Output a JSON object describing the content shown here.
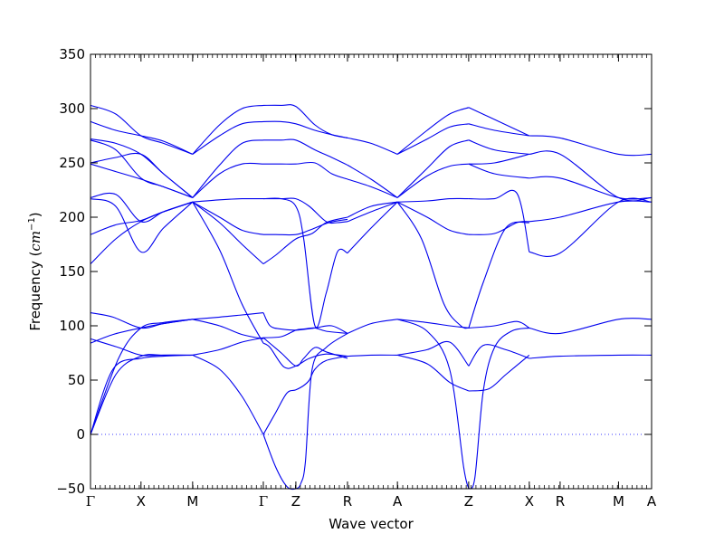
{
  "chart_data": {
    "type": "line",
    "title": "",
    "xlabel": "Wave vector",
    "ylabel": "Frequency (cm⁻¹)",
    "ylabel_text": "Frequency (",
    "ylabel_unit": "cm",
    "ylabel_exp": "−1",
    "ylabel_close": ")",
    "ylim": [
      -50,
      350
    ],
    "yticks": [
      -50,
      0,
      50,
      100,
      150,
      200,
      250,
      300,
      350
    ],
    "ytick_labels": [
      "−50",
      "0",
      "50",
      "100",
      "150",
      "200",
      "250",
      "300",
      "350"
    ],
    "xlim": [
      0,
      1
    ],
    "xticks": [
      {
        "label": "Γ",
        "pos": 0.0
      },
      {
        "label": "X",
        "pos": 0.09
      },
      {
        "label": "M",
        "pos": 0.182
      },
      {
        "label": "Γ",
        "pos": 0.308
      },
      {
        "label": "Z",
        "pos": 0.366
      },
      {
        "label": "R",
        "pos": 0.458
      },
      {
        "label": "A",
        "pos": 0.547
      },
      {
        "label": "Z",
        "pos": 0.674
      },
      {
        "label": "X",
        "pos": 0.782
      },
      {
        "label": "R",
        "pos": 0.837
      },
      {
        "label": "M",
        "pos": 0.941
      },
      {
        "label": "A",
        "pos": 1.0
      }
    ],
    "zero_line": {
      "y": 0,
      "style": "dotted",
      "color": "#3a3aff"
    },
    "grid": false,
    "line_color": "#0000ee",
    "series": [
      {
        "x": [
          0.0,
          0.04,
          0.09,
          0.13,
          0.182
        ],
        "y": [
          0,
          60,
          70,
          72,
          73
        ]
      },
      {
        "x": [
          0.0,
          0.045,
          0.09,
          0.13,
          0.182
        ],
        "y": [
          0,
          55,
          72,
          73,
          73
        ]
      },
      {
        "x": [
          0.0,
          0.05,
          0.09,
          0.13,
          0.182
        ],
        "y": [
          0,
          70,
          98,
          103,
          106
        ]
      },
      {
        "x": [
          0.0,
          0.04,
          0.09,
          0.13,
          0.182
        ],
        "y": [
          84,
          92,
          98,
          102,
          106
        ]
      },
      {
        "x": [
          0.0,
          0.05,
          0.09,
          0.13,
          0.182
        ],
        "y": [
          88,
          80,
          73,
          73,
          73
        ]
      },
      {
        "x": [
          0.0,
          0.04,
          0.09,
          0.13,
          0.182
        ],
        "y": [
          112,
          108,
          98,
          102,
          106
        ]
      },
      {
        "x": [
          0.0,
          0.045,
          0.09,
          0.13,
          0.182
        ],
        "y": [
          157,
          180,
          196,
          205,
          214
        ]
      },
      {
        "x": [
          0.0,
          0.045,
          0.09,
          0.13,
          0.182
        ],
        "y": [
          184,
          193,
          197,
          205,
          214
        ]
      },
      {
        "x": [
          0.0,
          0.045,
          0.09,
          0.13,
          0.182
        ],
        "y": [
          217,
          210,
          168,
          190,
          214
        ]
      },
      {
        "x": [
          0.0,
          0.045,
          0.09,
          0.13,
          0.182
        ],
        "y": [
          218,
          221,
          196,
          205,
          214
        ]
      },
      {
        "x": [
          0.0,
          0.045,
          0.09,
          0.13,
          0.182
        ],
        "y": [
          249,
          242,
          235,
          228,
          218
        ]
      },
      {
        "x": [
          0.0,
          0.045,
          0.09,
          0.13,
          0.182
        ],
        "y": [
          250,
          255,
          258,
          240,
          218
        ]
      },
      {
        "x": [
          0.0,
          0.045,
          0.09,
          0.13,
          0.182
        ],
        "y": [
          271,
          262,
          236,
          228,
          218
        ]
      },
      {
        "x": [
          0.0,
          0.045,
          0.09,
          0.13,
          0.182
        ],
        "y": [
          272,
          268,
          258,
          240,
          218
        ]
      },
      {
        "x": [
          0.0,
          0.045,
          0.09,
          0.13,
          0.182
        ],
        "y": [
          288,
          280,
          275,
          270,
          258
        ]
      },
      {
        "x": [
          0.0,
          0.045,
          0.09,
          0.13,
          0.182
        ],
        "y": [
          303,
          295,
          275,
          268,
          258
        ]
      },
      {
        "x": [
          0.182,
          0.23,
          0.27,
          0.308
        ],
        "y": [
          73,
          60,
          35,
          0
        ]
      },
      {
        "x": [
          0.182,
          0.23,
          0.27,
          0.308
        ],
        "y": [
          73,
          78,
          85,
          89
        ]
      },
      {
        "x": [
          0.182,
          0.23,
          0.27,
          0.308
        ],
        "y": [
          106,
          108,
          110,
          112
        ]
      },
      {
        "x": [
          0.182,
          0.23,
          0.27,
          0.308
        ],
        "y": [
          106,
          100,
          92,
          88
        ]
      },
      {
        "x": [
          0.182,
          0.23,
          0.27,
          0.308
        ],
        "y": [
          214,
          170,
          120,
          84
        ]
      },
      {
        "x": [
          0.182,
          0.23,
          0.27,
          0.308
        ],
        "y": [
          214,
          195,
          175,
          157
        ]
      },
      {
        "x": [
          0.182,
          0.23,
          0.27,
          0.308
        ],
        "y": [
          214,
          200,
          188,
          184
        ]
      },
      {
        "x": [
          0.182,
          0.23,
          0.27,
          0.308
        ],
        "y": [
          214,
          216,
          217,
          217
        ]
      },
      {
        "x": [
          0.182,
          0.23,
          0.27,
          0.308
        ],
        "y": [
          218,
          240,
          249,
          249
        ]
      },
      {
        "x": [
          0.182,
          0.23,
          0.27,
          0.308
        ],
        "y": [
          218,
          248,
          268,
          271
        ]
      },
      {
        "x": [
          0.182,
          0.23,
          0.27,
          0.308
        ],
        "y": [
          258,
          275,
          286,
          288
        ]
      },
      {
        "x": [
          0.182,
          0.23,
          0.27,
          0.308
        ],
        "y": [
          258,
          285,
          300,
          303
        ]
      },
      {
        "x": [
          0.308,
          0.33,
          0.35,
          0.366,
          0.38,
          0.39,
          0.4,
          0.42,
          0.458
        ],
        "y": [
          0,
          20,
          38,
          41,
          45,
          50,
          60,
          68,
          72
        ]
      },
      {
        "x": [
          0.308,
          0.33,
          0.35,
          0.366,
          0.375,
          0.383,
          0.395,
          0.42,
          0.458
        ],
        "y": [
          0,
          -30,
          -48,
          -50,
          -45,
          -25,
          60,
          80,
          93
        ]
      },
      {
        "x": [
          0.308,
          0.34,
          0.366,
          0.38,
          0.4,
          0.42,
          0.458
        ],
        "y": [
          89,
          75,
          63,
          70,
          80,
          76,
          70
        ]
      },
      {
        "x": [
          0.308,
          0.34,
          0.366,
          0.38,
          0.4,
          0.42,
          0.458
        ],
        "y": [
          89,
          90,
          96,
          97,
          98,
          95,
          93
        ]
      },
      {
        "x": [
          0.308,
          0.32,
          0.34,
          0.366,
          0.4,
          0.43,
          0.458
        ],
        "y": [
          112,
          100,
          97,
          96,
          98,
          100,
          93
        ]
      },
      {
        "x": [
          0.308,
          0.32,
          0.345,
          0.366,
          0.39,
          0.42,
          0.458
        ],
        "y": [
          84,
          80,
          62,
          63,
          70,
          74,
          72
        ]
      },
      {
        "x": [
          0.308,
          0.33,
          0.366,
          0.395,
          0.42,
          0.458
        ],
        "y": [
          157,
          165,
          180,
          185,
          195,
          200
        ]
      },
      {
        "x": [
          0.308,
          0.33,
          0.366,
          0.39,
          0.425,
          0.458
        ],
        "y": [
          184,
          184,
          184,
          188,
          195,
          198
        ]
      },
      {
        "x": [
          0.308,
          0.34,
          0.366,
          0.38,
          0.4,
          0.42,
          0.44,
          0.458
        ],
        "y": [
          217,
          217,
          210,
          180,
          100,
          130,
          168,
          167
        ]
      },
      {
        "x": [
          0.308,
          0.34,
          0.366,
          0.39,
          0.42,
          0.44,
          0.458
        ],
        "y": [
          217,
          217,
          217,
          210,
          196,
          195,
          196
        ]
      },
      {
        "x": [
          0.308,
          0.34,
          0.366,
          0.4,
          0.43,
          0.458
        ],
        "y": [
          249,
          249,
          249,
          250,
          240,
          235
        ]
      },
      {
        "x": [
          0.308,
          0.34,
          0.366,
          0.4,
          0.43,
          0.458
        ],
        "y": [
          271,
          271,
          271,
          262,
          255,
          248
        ]
      },
      {
        "x": [
          0.308,
          0.34,
          0.366,
          0.4,
          0.43,
          0.458
        ],
        "y": [
          288,
          288,
          286,
          280,
          276,
          273
        ]
      },
      {
        "x": [
          0.308,
          0.34,
          0.366,
          0.4,
          0.43,
          0.458
        ],
        "y": [
          303,
          303,
          302,
          285,
          276,
          273
        ]
      },
      {
        "x": [
          0.458,
          0.5,
          0.547
        ],
        "y": [
          72,
          73,
          73
        ]
      },
      {
        "x": [
          0.458,
          0.5,
          0.547
        ],
        "y": [
          93,
          102,
          106
        ]
      },
      {
        "x": [
          0.458,
          0.5,
          0.547
        ],
        "y": [
          167,
          190,
          214
        ]
      },
      {
        "x": [
          0.458,
          0.5,
          0.547
        ],
        "y": [
          196,
          205,
          214
        ]
      },
      {
        "x": [
          0.458,
          0.5,
          0.547
        ],
        "y": [
          200,
          210,
          214
        ]
      },
      {
        "x": [
          0.458,
          0.5,
          0.547
        ],
        "y": [
          235,
          228,
          218
        ]
      },
      {
        "x": [
          0.458,
          0.5,
          0.547
        ],
        "y": [
          248,
          235,
          218
        ]
      },
      {
        "x": [
          0.458,
          0.5,
          0.547
        ],
        "y": [
          273,
          268,
          258
        ]
      },
      {
        "x": [
          0.547,
          0.6,
          0.64,
          0.674
        ],
        "y": [
          73,
          65,
          48,
          40
        ]
      },
      {
        "x": [
          0.547,
          0.6,
          0.64,
          0.665,
          0.674
        ],
        "y": [
          106,
          95,
          60,
          -30,
          -50
        ]
      },
      {
        "x": [
          0.547,
          0.6,
          0.64,
          0.674
        ],
        "y": [
          73,
          78,
          85,
          63
        ]
      },
      {
        "x": [
          0.547,
          0.6,
          0.64,
          0.674
        ],
        "y": [
          106,
          103,
          100,
          98
        ]
      },
      {
        "x": [
          0.547,
          0.59,
          0.63,
          0.66,
          0.674
        ],
        "y": [
          214,
          180,
          120,
          100,
          98
        ]
      },
      {
        "x": [
          0.547,
          0.6,
          0.64,
          0.674
        ],
        "y": [
          214,
          200,
          188,
          184
        ]
      },
      {
        "x": [
          0.547,
          0.6,
          0.64,
          0.674
        ],
        "y": [
          214,
          215,
          217,
          217
        ]
      },
      {
        "x": [
          0.547,
          0.6,
          0.64,
          0.674
        ],
        "y": [
          218,
          238,
          247,
          249
        ]
      },
      {
        "x": [
          0.547,
          0.6,
          0.64,
          0.674
        ],
        "y": [
          218,
          245,
          265,
          271
        ]
      },
      {
        "x": [
          0.547,
          0.6,
          0.64,
          0.674
        ],
        "y": [
          258,
          272,
          283,
          286
        ]
      },
      {
        "x": [
          0.547,
          0.6,
          0.64,
          0.674
        ],
        "y": [
          258,
          280,
          295,
          301
        ]
      },
      {
        "x": [
          0.674,
          0.71,
          0.74,
          0.782
        ],
        "y": [
          40,
          42,
          55,
          73
        ]
      },
      {
        "x": [
          0.674,
          0.685,
          0.7,
          0.72,
          0.75,
          0.782
        ],
        "y": [
          -50,
          -40,
          40,
          80,
          95,
          98
        ]
      },
      {
        "x": [
          0.674,
          0.7,
          0.74,
          0.782
        ],
        "y": [
          63,
          82,
          78,
          70
        ]
      },
      {
        "x": [
          0.674,
          0.72,
          0.76,
          0.782
        ],
        "y": [
          98,
          100,
          104,
          98
        ]
      },
      {
        "x": [
          0.674,
          0.7,
          0.74,
          0.782
        ],
        "y": [
          98,
          140,
          190,
          195
        ]
      },
      {
        "x": [
          0.674,
          0.72,
          0.76,
          0.782
        ],
        "y": [
          184,
          185,
          195,
          196
        ]
      },
      {
        "x": [
          0.674,
          0.72,
          0.76,
          0.782
        ],
        "y": [
          217,
          217,
          222,
          168
        ]
      },
      {
        "x": [
          0.674,
          0.72,
          0.782
        ],
        "y": [
          249,
          250,
          258
        ]
      },
      {
        "x": [
          0.674,
          0.72,
          0.782
        ],
        "y": [
          271,
          262,
          258
        ]
      },
      {
        "x": [
          0.674,
          0.72,
          0.782
        ],
        "y": [
          286,
          280,
          275
        ]
      },
      {
        "x": [
          0.674,
          0.72,
          0.782
        ],
        "y": [
          301,
          290,
          275
        ]
      },
      {
        "x": [
          0.674,
          0.72,
          0.782
        ],
        "y": [
          249,
          240,
          236
        ]
      },
      {
        "x": [
          0.782,
          0.837,
          0.941,
          1.0
        ],
        "y": [
          70,
          72,
          73,
          73
        ]
      },
      {
        "x": [
          0.782,
          0.837,
          0.941,
          1.0
        ],
        "y": [
          98,
          93,
          106,
          106
        ]
      },
      {
        "x": [
          0.782,
          0.837,
          0.941,
          1.0
        ],
        "y": [
          168,
          167,
          214,
          214
        ]
      },
      {
        "x": [
          0.782,
          0.837,
          0.941,
          1.0
        ],
        "y": [
          196,
          200,
          214,
          214
        ]
      },
      {
        "x": [
          0.782,
          0.837,
          0.941,
          1.0
        ],
        "y": [
          236,
          236,
          218,
          218
        ]
      },
      {
        "x": [
          0.782,
          0.837,
          0.941,
          1.0
        ],
        "y": [
          258,
          258,
          218,
          218
        ]
      },
      {
        "x": [
          0.782,
          0.837,
          0.941,
          1.0
        ],
        "y": [
          275,
          273,
          258,
          258
        ]
      }
    ]
  }
}
